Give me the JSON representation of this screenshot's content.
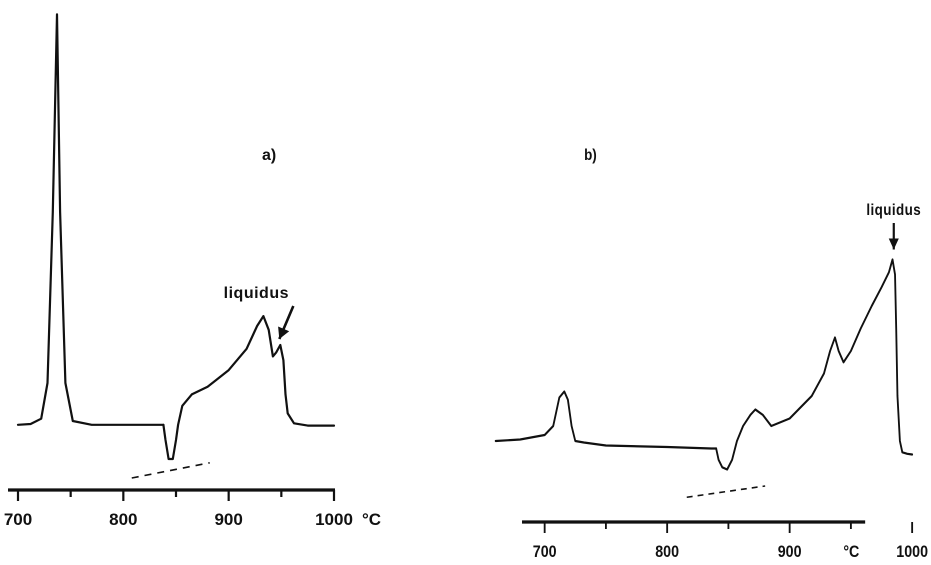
{
  "chart_data": [
    {
      "type": "line",
      "panel_label": "a)",
      "xlabel": "°C",
      "xlim": [
        700,
        1000
      ],
      "x_ticks": [
        700,
        800,
        900,
        1000
      ],
      "x_tick_labels": [
        "700",
        "800",
        "900",
        "1000"
      ],
      "grid": false,
      "annotation": {
        "text": "liquidus",
        "x": 950
      },
      "series": [
        {
          "segments": [
            {
              "x": [
                700,
                712,
                722,
                728,
                733,
                737,
                740,
                745,
                752,
                770,
                800,
                830,
                838
              ],
              "y": [
                20,
                21,
                28,
                75,
                300,
                560,
                300,
                75,
                25,
                20,
                20,
                20,
                20
              ]
            },
            {
              "x": [
                838,
                840,
                843,
                847,
                850,
                852,
                856,
                865,
                880,
                900,
                917,
                927,
                933,
                938,
                942,
                945,
                949,
                952,
                954,
                956,
                962,
                975,
                1000
              ],
              "y": [
                20,
                0,
                -25,
                -25,
                0,
                20,
                45,
                60,
                70,
                92,
                120,
                150,
                163,
                145,
                110,
                115,
                125,
                105,
                60,
                35,
                22,
                19,
                19
              ]
            }
          ]
        }
      ],
      "baseline": {
        "x": [
          808,
          882
        ],
        "y": [
          -50,
          -30
        ]
      }
    },
    {
      "type": "line",
      "panel_label": "b)",
      "xlabel": "°C",
      "xlim": [
        700,
        1000
      ],
      "x_ticks": [
        700,
        800,
        900,
        1000
      ],
      "x_tick_labels": [
        "700",
        "800",
        "900",
        "1000"
      ],
      "grid": false,
      "annotation": {
        "text": "liquidus",
        "x": 985
      },
      "series": [
        {
          "segments": [
            {
              "x": [
                660,
                680,
                700,
                707,
                712,
                716,
                719,
                722,
                725,
                732,
                750,
                800,
                836,
                840
              ],
              "y": [
                20,
                22,
                28,
                40,
                78,
                86,
                75,
                40,
                20,
                18,
                14,
                12,
                10,
                10
              ]
            },
            {
              "x": [
                840,
                842,
                845,
                849,
                853,
                857,
                862,
                868,
                872,
                878,
                885,
                900,
                918,
                928,
                933,
                937,
                940,
                944,
                950,
                958,
                967,
                975,
                981,
                984,
                986,
                987,
                988,
                990,
                992,
                996,
                1000
              ],
              "y": [
                10,
                -5,
                -15,
                -18,
                -5,
                20,
                40,
                55,
                62,
                55,
                40,
                50,
                80,
                110,
                140,
                158,
                140,
                125,
                140,
                170,
                200,
                225,
                245,
                262,
                242,
                170,
                80,
                20,
                5,
                3,
                2
              ]
            }
          ]
        }
      ],
      "baseline": {
        "x": [
          816,
          880
        ],
        "y": [
          -55,
          -40
        ]
      }
    }
  ]
}
